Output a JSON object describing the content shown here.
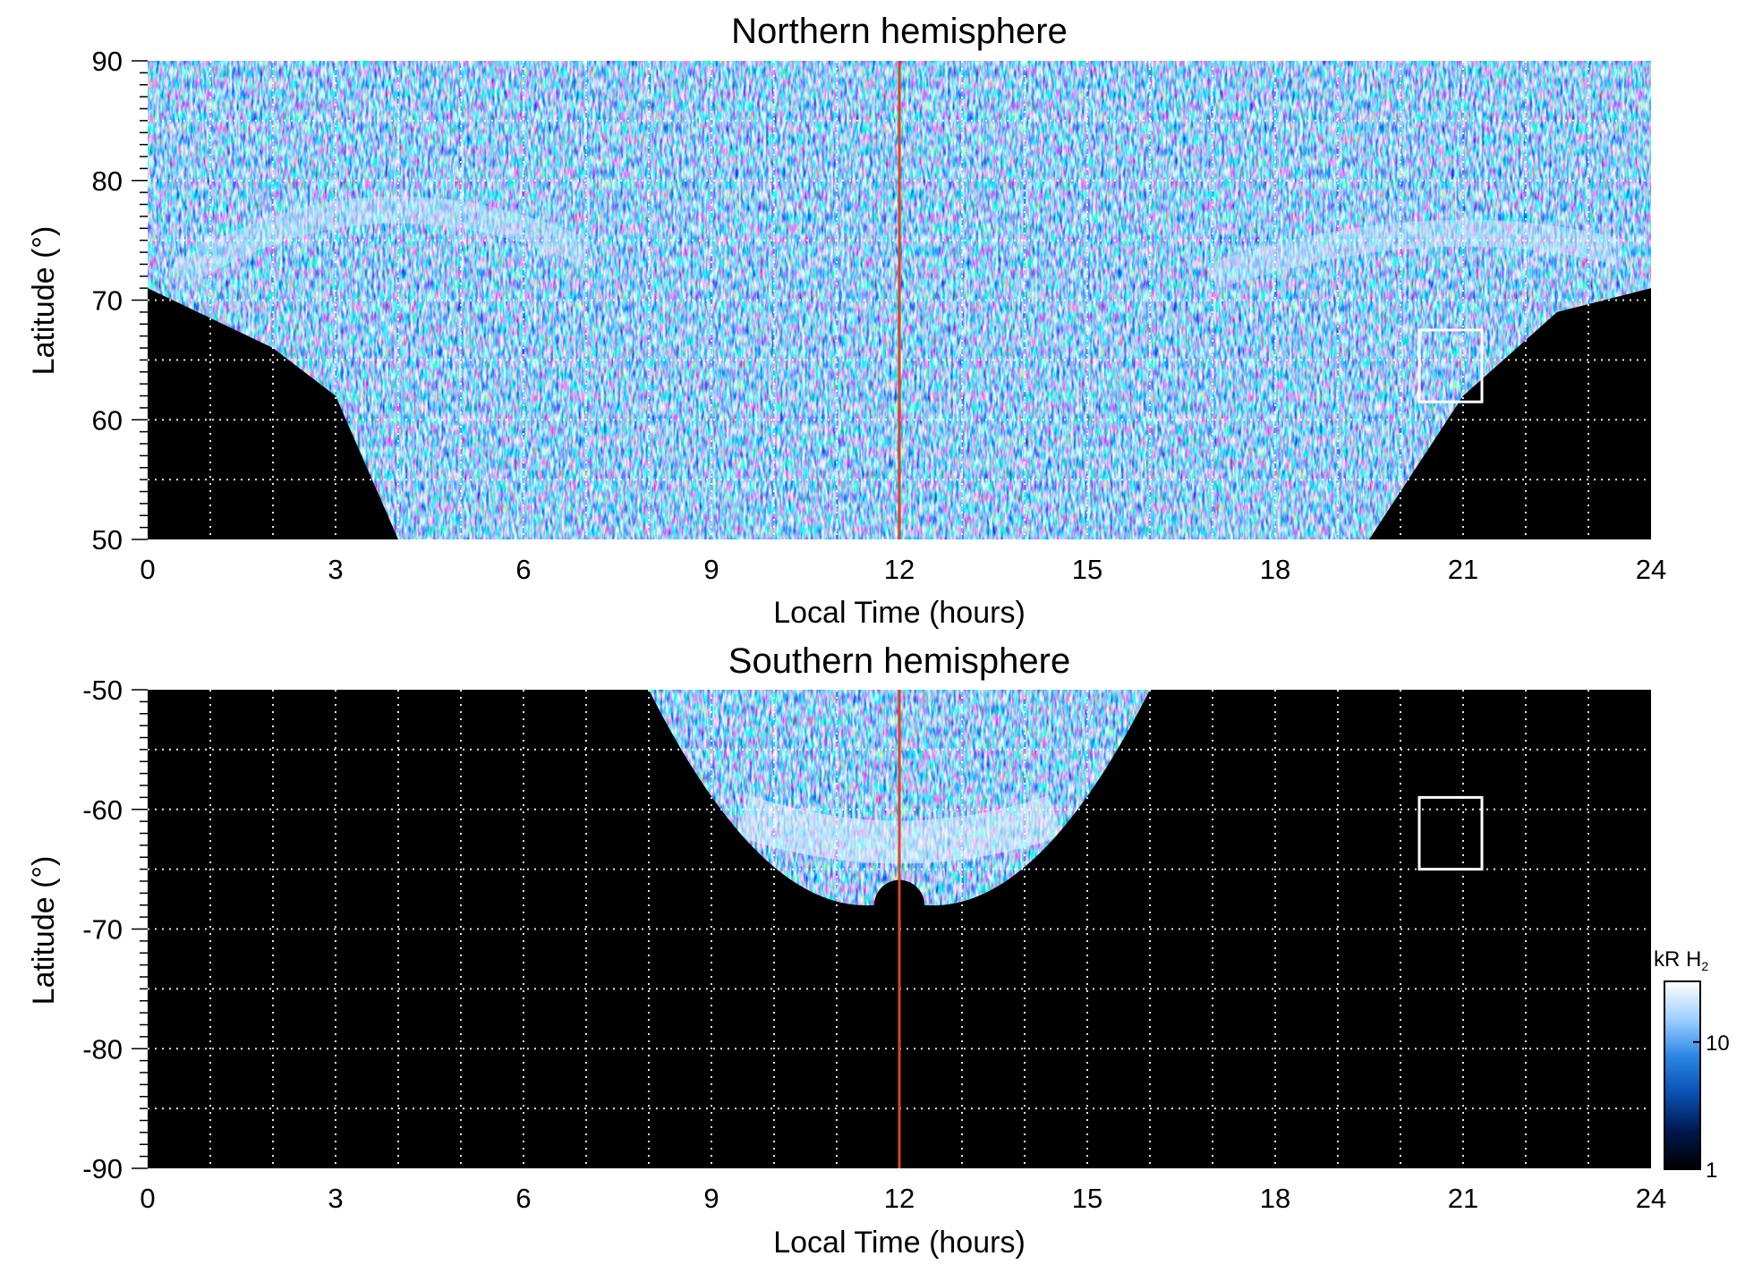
{
  "chart_data": [
    {
      "type": "heatmap",
      "title": "Northern hemisphere",
      "xlabel": "Local Time (hours)",
      "ylabel": "Latitude (°)",
      "xlim": [
        0,
        24
      ],
      "ylim": [
        50,
        90
      ],
      "x_ticks": [
        0,
        3,
        6,
        9,
        12,
        15,
        18,
        21,
        24
      ],
      "y_ticks": [
        50,
        60,
        70,
        80,
        90
      ],
      "grid": true,
      "reference_line": {
        "x": 12,
        "color": "#d44a1e"
      },
      "highlight_box": {
        "x": [
          20.3,
          21.3
        ],
        "y": [
          61.5,
          67.5
        ]
      },
      "emission_region": {
        "description_values_kR": "1 to 30",
        "coverage_boundary_lat_at_lt": [
          [
            0,
            71
          ],
          [
            2,
            66
          ],
          [
            3,
            62
          ],
          [
            4,
            50
          ],
          [
            12,
            50
          ],
          [
            19.5,
            50
          ],
          [
            21,
            62
          ],
          [
            22.5,
            69
          ],
          [
            24,
            71
          ]
        ],
        "main_oval_lat": 76
      }
    },
    {
      "type": "heatmap",
      "title": "Southern hemisphere",
      "xlabel": "Local Time (hours)",
      "ylabel": "Latitude (°)",
      "xlim": [
        0,
        24
      ],
      "ylim": [
        -90,
        -50
      ],
      "x_ticks": [
        0,
        3,
        6,
        9,
        12,
        15,
        18,
        21,
        24
      ],
      "y_ticks": [
        -50,
        -60,
        -70,
        -80,
        -90
      ],
      "grid": true,
      "reference_line": {
        "x": 12,
        "color": "#d44a1e"
      },
      "highlight_box": {
        "x": [
          20.3,
          21.3
        ],
        "y": [
          -65,
          -59
        ]
      },
      "emission_region": {
        "lt_range": [
          8,
          16
        ],
        "lat_extent_at_noon": [
          -50,
          -68
        ],
        "bright_band_lat": -62
      }
    }
  ],
  "colorbar": {
    "label": "kR H₂",
    "label_main": "kR H",
    "label_sub": "2",
    "scale": "log",
    "range": [
      1,
      30
    ],
    "ticks": [
      {
        "label": "10",
        "value": 10
      },
      {
        "label": "1",
        "value": 1
      }
    ],
    "colors": [
      "#000000",
      "#00174d",
      "#0a4fb0",
      "#2a86e6",
      "#9fd0ff",
      "#ffffff"
    ]
  }
}
